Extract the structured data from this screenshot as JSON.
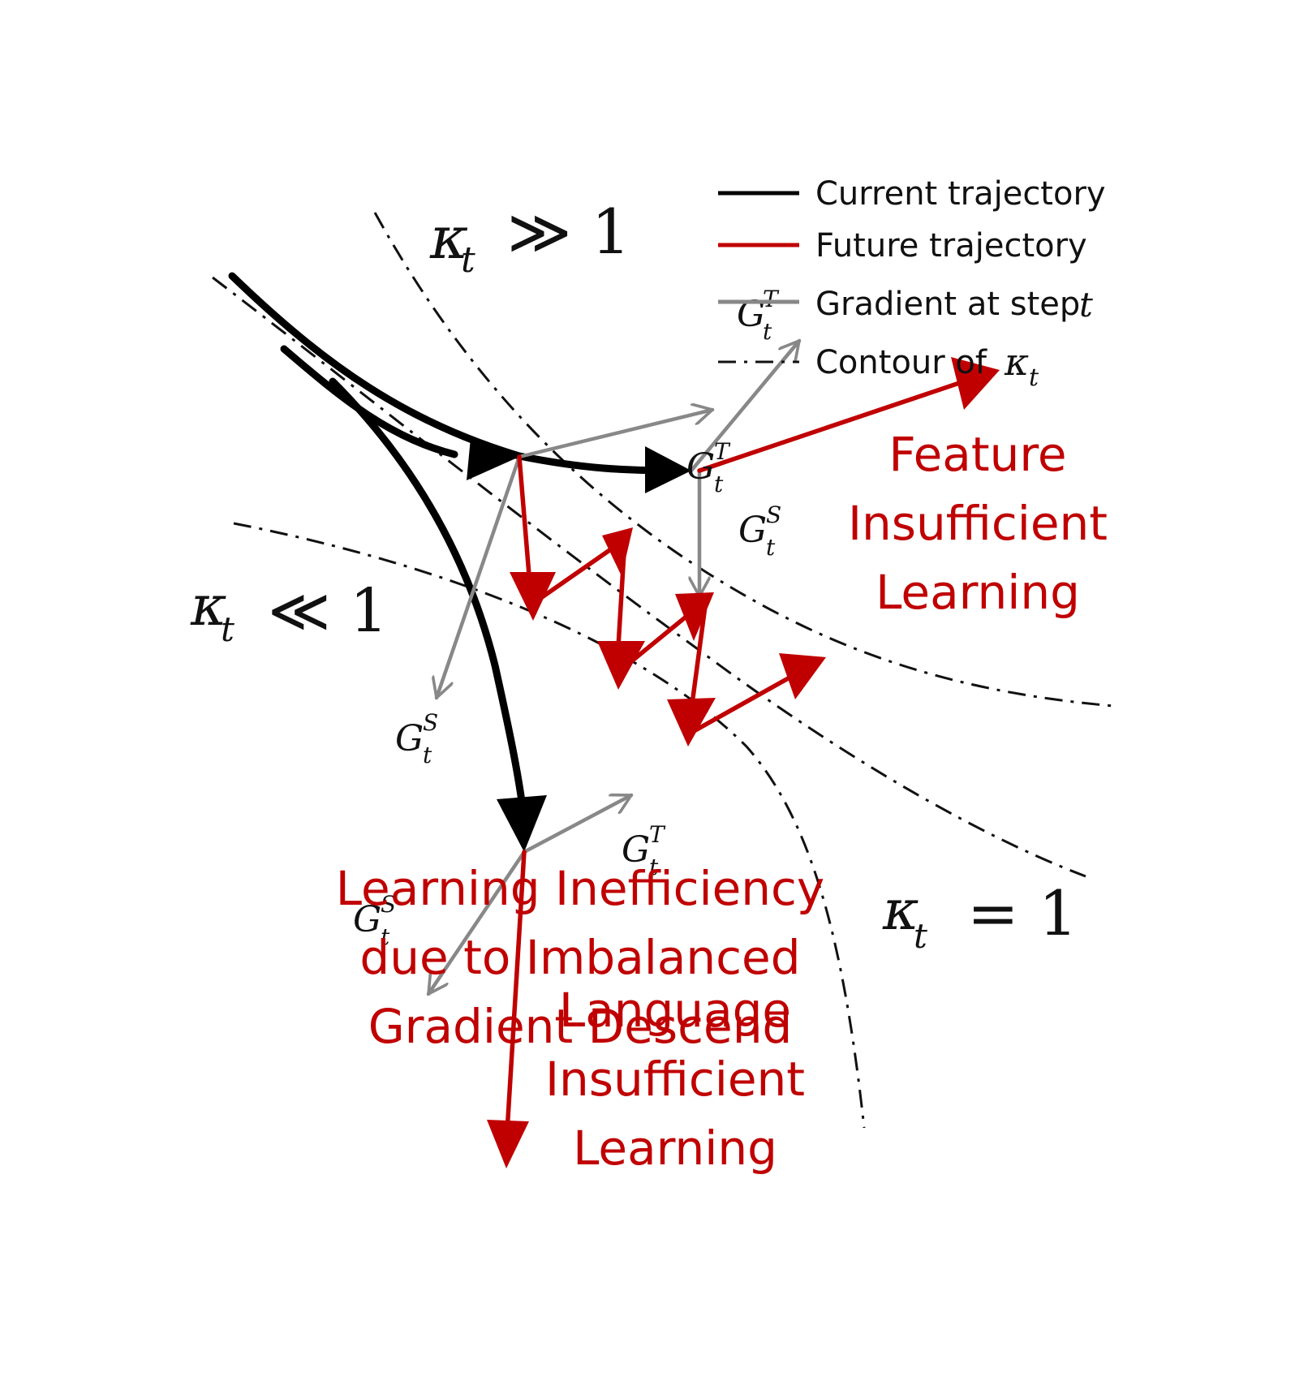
{
  "colors": {
    "current": "#000000",
    "future": "#c00000",
    "gradient": "#888888",
    "contour": "#111111",
    "red_text": "#c00000"
  },
  "legend": {
    "current_label": "Current trajectory",
    "future_label": "Future trajectory",
    "gradient_label": "Gradient at step",
    "gradient_var": "t",
    "contour_label": "Contour of",
    "contour_var": "κ",
    "contour_sub": "t"
  },
  "contour_labels": {
    "high": {
      "kappa": "κ",
      "sub": "t",
      "rel": "≫ 1"
    },
    "low": {
      "kappa": "κ",
      "sub": "t",
      "rel": "≪ 1"
    },
    "equal": {
      "kappa": "κ",
      "sub": "t",
      "rel": "= 1"
    }
  },
  "gradient_labels": {
    "g": "G",
    "sub": "t",
    "sup_t": "T",
    "sup_s": "S"
  },
  "annotations": {
    "feature": [
      "Feature",
      "Insufficient",
      "Learning"
    ],
    "language": [
      "Language",
      "Insufficient",
      "Learning"
    ],
    "inefficiency": [
      "Learning Inefficiency",
      "due to Imbalanced",
      "Gradient Descend"
    ]
  }
}
